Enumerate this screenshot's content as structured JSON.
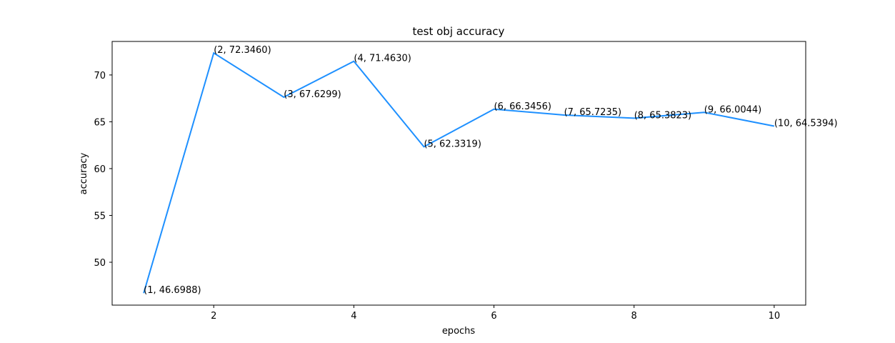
{
  "chart_data": {
    "type": "line",
    "title": "test obj accuracy",
    "xlabel": "epochs",
    "ylabel": "accuracy",
    "xlim": [
      0.55,
      10.45
    ],
    "ylim": [
      45.42,
      73.58
    ],
    "xticks": [
      2,
      4,
      6,
      8,
      10
    ],
    "yticks": [
      50,
      55,
      60,
      65,
      70
    ],
    "grid": false,
    "line_color": "#1e90ff",
    "series": [
      {
        "x": [
          1,
          2,
          3,
          4,
          5,
          6,
          7,
          8,
          9,
          10
        ],
        "values": [
          46.6988,
          72.346,
          67.6299,
          71.463,
          62.3319,
          66.3456,
          65.7235,
          65.3823,
          66.0044,
          64.5394
        ]
      }
    ],
    "annotations": [
      "(1, 46.6988)",
      "(2, 72.3460)",
      "(3, 67.6299)",
      "(4, 71.4630)",
      "(5, 62.3319)",
      "(6, 66.3456)",
      "(7, 65.7235)",
      "(8, 65.3823)",
      "(9, 66.0044)",
      "(10, 64.5394)"
    ]
  }
}
